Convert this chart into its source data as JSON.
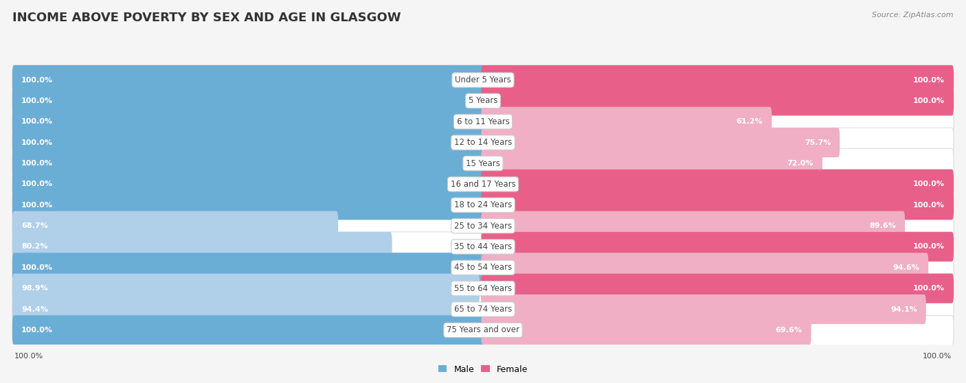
{
  "title": "INCOME ABOVE POVERTY BY SEX AND AGE IN GLASGOW",
  "source": "Source: ZipAtlas.com",
  "categories": [
    "Under 5 Years",
    "5 Years",
    "6 to 11 Years",
    "12 to 14 Years",
    "15 Years",
    "16 and 17 Years",
    "18 to 24 Years",
    "25 to 34 Years",
    "35 to 44 Years",
    "45 to 54 Years",
    "55 to 64 Years",
    "65 to 74 Years",
    "75 Years and over"
  ],
  "male_values": [
    100.0,
    100.0,
    100.0,
    100.0,
    100.0,
    100.0,
    100.0,
    68.7,
    80.2,
    100.0,
    98.9,
    94.4,
    100.0
  ],
  "female_values": [
    100.0,
    100.0,
    61.2,
    75.7,
    72.0,
    100.0,
    100.0,
    89.6,
    100.0,
    94.6,
    100.0,
    94.1,
    69.6
  ],
  "male_color_full": "#6aaed6",
  "male_color_partial": "#b0cfe8",
  "female_color_full": "#e8608a",
  "female_color_partial": "#f0afc4",
  "bg_color": "#f5f5f5",
  "bar_bg_color": "#e0e0e0",
  "row_bg_color": "#ebebeb",
  "title_fontsize": 13,
  "cat_fontsize": 8.5,
  "value_fontsize": 8.0,
  "legend_fontsize": 9,
  "source_fontsize": 8
}
